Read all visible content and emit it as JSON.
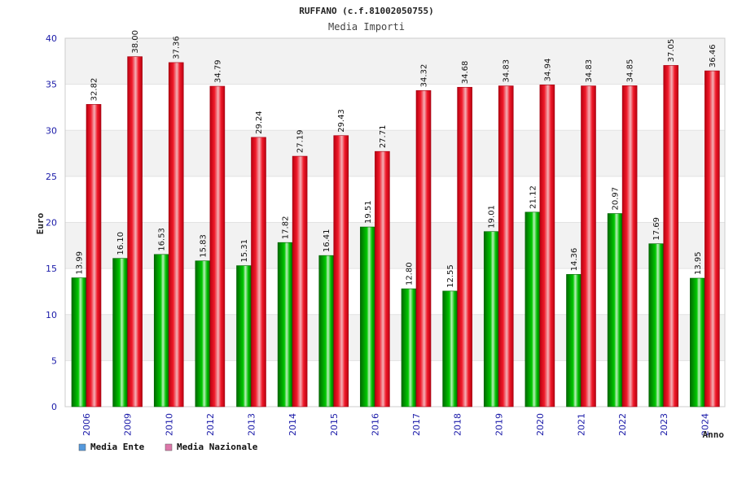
{
  "chart_data": {
    "type": "bar",
    "title": "RUFFANO (c.f.81002050755)",
    "subtitle": "Media Importi",
    "xlabel": "Anno",
    "ylabel": "Euro",
    "ylim": [
      0,
      40
    ],
    "yticks": [
      0,
      5,
      10,
      15,
      20,
      25,
      30,
      35,
      40
    ],
    "categories": [
      "2006",
      "2009",
      "2010",
      "2012",
      "2013",
      "2014",
      "2015",
      "2016",
      "2017",
      "2018",
      "2019",
      "2020",
      "2021",
      "2022",
      "2023",
      "2024"
    ],
    "series": [
      {
        "name": "Media Ente",
        "color": "#00b400",
        "values": [
          13.99,
          16.1,
          16.53,
          15.83,
          15.31,
          17.82,
          16.41,
          19.51,
          12.8,
          12.55,
          19.01,
          21.12,
          14.36,
          20.97,
          17.69,
          13.95
        ],
        "labels": [
          "13.99",
          "16.10",
          "16.53",
          "15.83",
          "15.31",
          "17.82",
          "16.41",
          "19.51",
          "12.80",
          "12.55",
          "19.01",
          "21.12",
          "14.36",
          "20.97",
          "17.69",
          "13.95"
        ]
      },
      {
        "name": "Media Nazionale",
        "color": "#ee1c2c",
        "values": [
          32.82,
          38.0,
          37.36,
          34.79,
          29.24,
          27.19,
          29.43,
          27.71,
          34.32,
          34.68,
          34.83,
          34.94,
          34.83,
          34.85,
          37.05,
          36.46
        ],
        "labels": [
          "32.82",
          "38.00",
          "37.36",
          "34.79",
          "29.24",
          "27.19",
          "29.43",
          "27.71",
          "34.32",
          "34.68",
          "34.83",
          "34.94",
          "34.83",
          "34.85",
          "37.05",
          "36.46"
        ]
      }
    ],
    "legend": [
      {
        "label": "Media Ente",
        "color": "#5599dd"
      },
      {
        "label": "Media Nazionale",
        "color": "#dd77aa"
      }
    ],
    "grid": true,
    "legend_position": "bottom-left"
  }
}
